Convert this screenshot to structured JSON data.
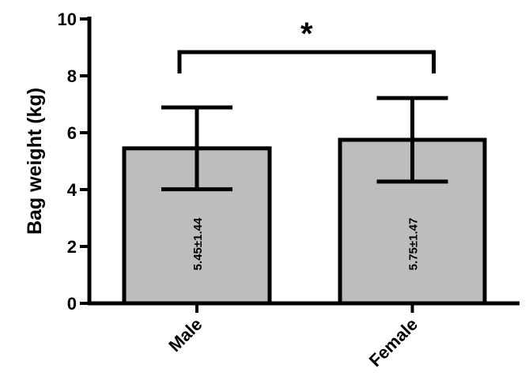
{
  "chart_data": {
    "type": "bar",
    "categories": [
      "Male",
      "Female"
    ],
    "values": [
      5.45,
      5.75
    ],
    "errors": [
      1.44,
      1.47
    ],
    "data_labels": [
      "5.45±1.44",
      "5.75±1.47"
    ],
    "ylabel": "Bag weight (kg)",
    "xlabel": "",
    "ylim": [
      0,
      10
    ],
    "yticks": [
      0,
      2,
      4,
      6,
      8,
      10
    ],
    "ytick_labels": [
      "0",
      "2",
      "4",
      "6",
      "8",
      "10"
    ],
    "significance": {
      "label": "*",
      "between": [
        "Male",
        "Female"
      ]
    },
    "bar_color": "#bdbdbd",
    "edge_color": "#000000",
    "grid": false,
    "legend": "none"
  }
}
